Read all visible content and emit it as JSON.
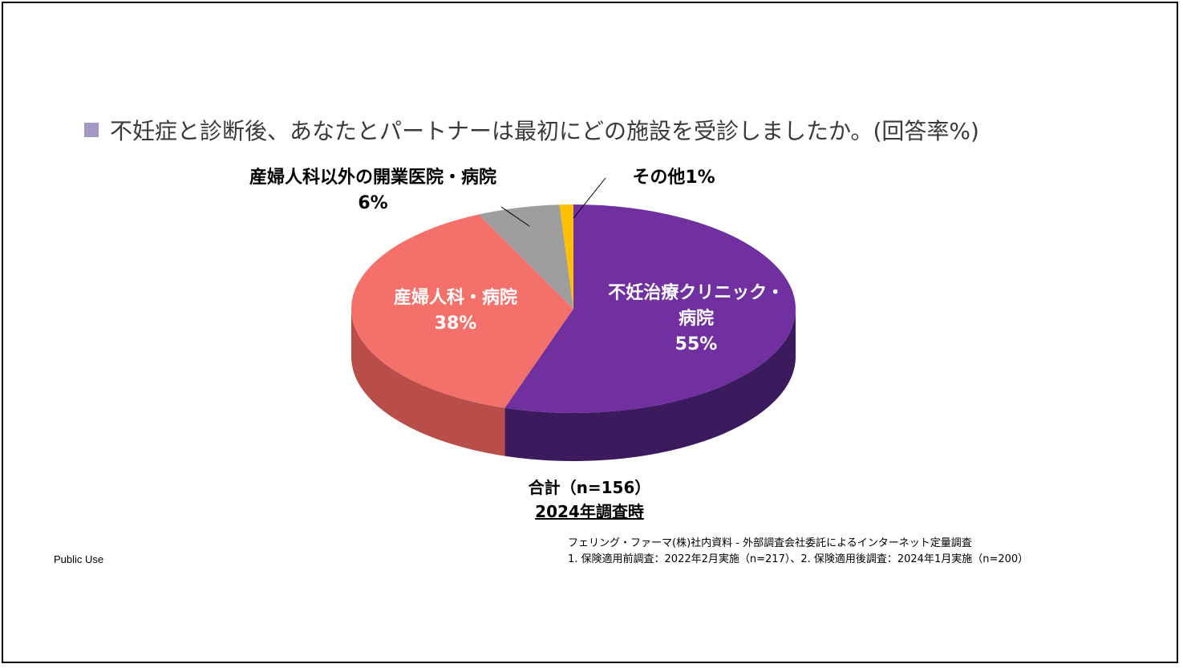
{
  "page": {
    "footer_left": "Public Use",
    "source_line1": "フェリング・ファーマ(株)社内資料 - 外部調査会社委託によるインターネット定量調査",
    "source_line2": "1. 保険適用前調査：2022年2月実施（n=217）、2. 保険適用後調査：2024年1月実施（n=200）"
  },
  "chart_data": {
    "type": "pie",
    "title": "不妊症と診断後、あなたとパートナーは最初にどの施設を受診しましたか。(回答率%)",
    "slices": [
      {
        "label_lines": [
          "不妊治療クリニック・",
          "病院"
        ],
        "value_text": "55%",
        "value": 55,
        "color": "#7030a0",
        "side_color": "#3c1a5e"
      },
      {
        "label_lines": [
          "産婦人科・病院"
        ],
        "value_text": "38%",
        "value": 38,
        "color": "#f4716b",
        "side_color": "#b84d49"
      },
      {
        "label_lines": [
          "産婦人科以外の開業医院・病院"
        ],
        "value_text": "6%",
        "value": 6,
        "color": "#9e9e9e",
        "side_color": "#6b6b6b"
      },
      {
        "label_lines": [
          "その他1%"
        ],
        "value_text": "",
        "value": 1,
        "color": "#ffc000",
        "side_color": "#b88a00"
      }
    ],
    "caption_line1": "合計（n=156）",
    "caption_line2": "2024年調査時"
  }
}
